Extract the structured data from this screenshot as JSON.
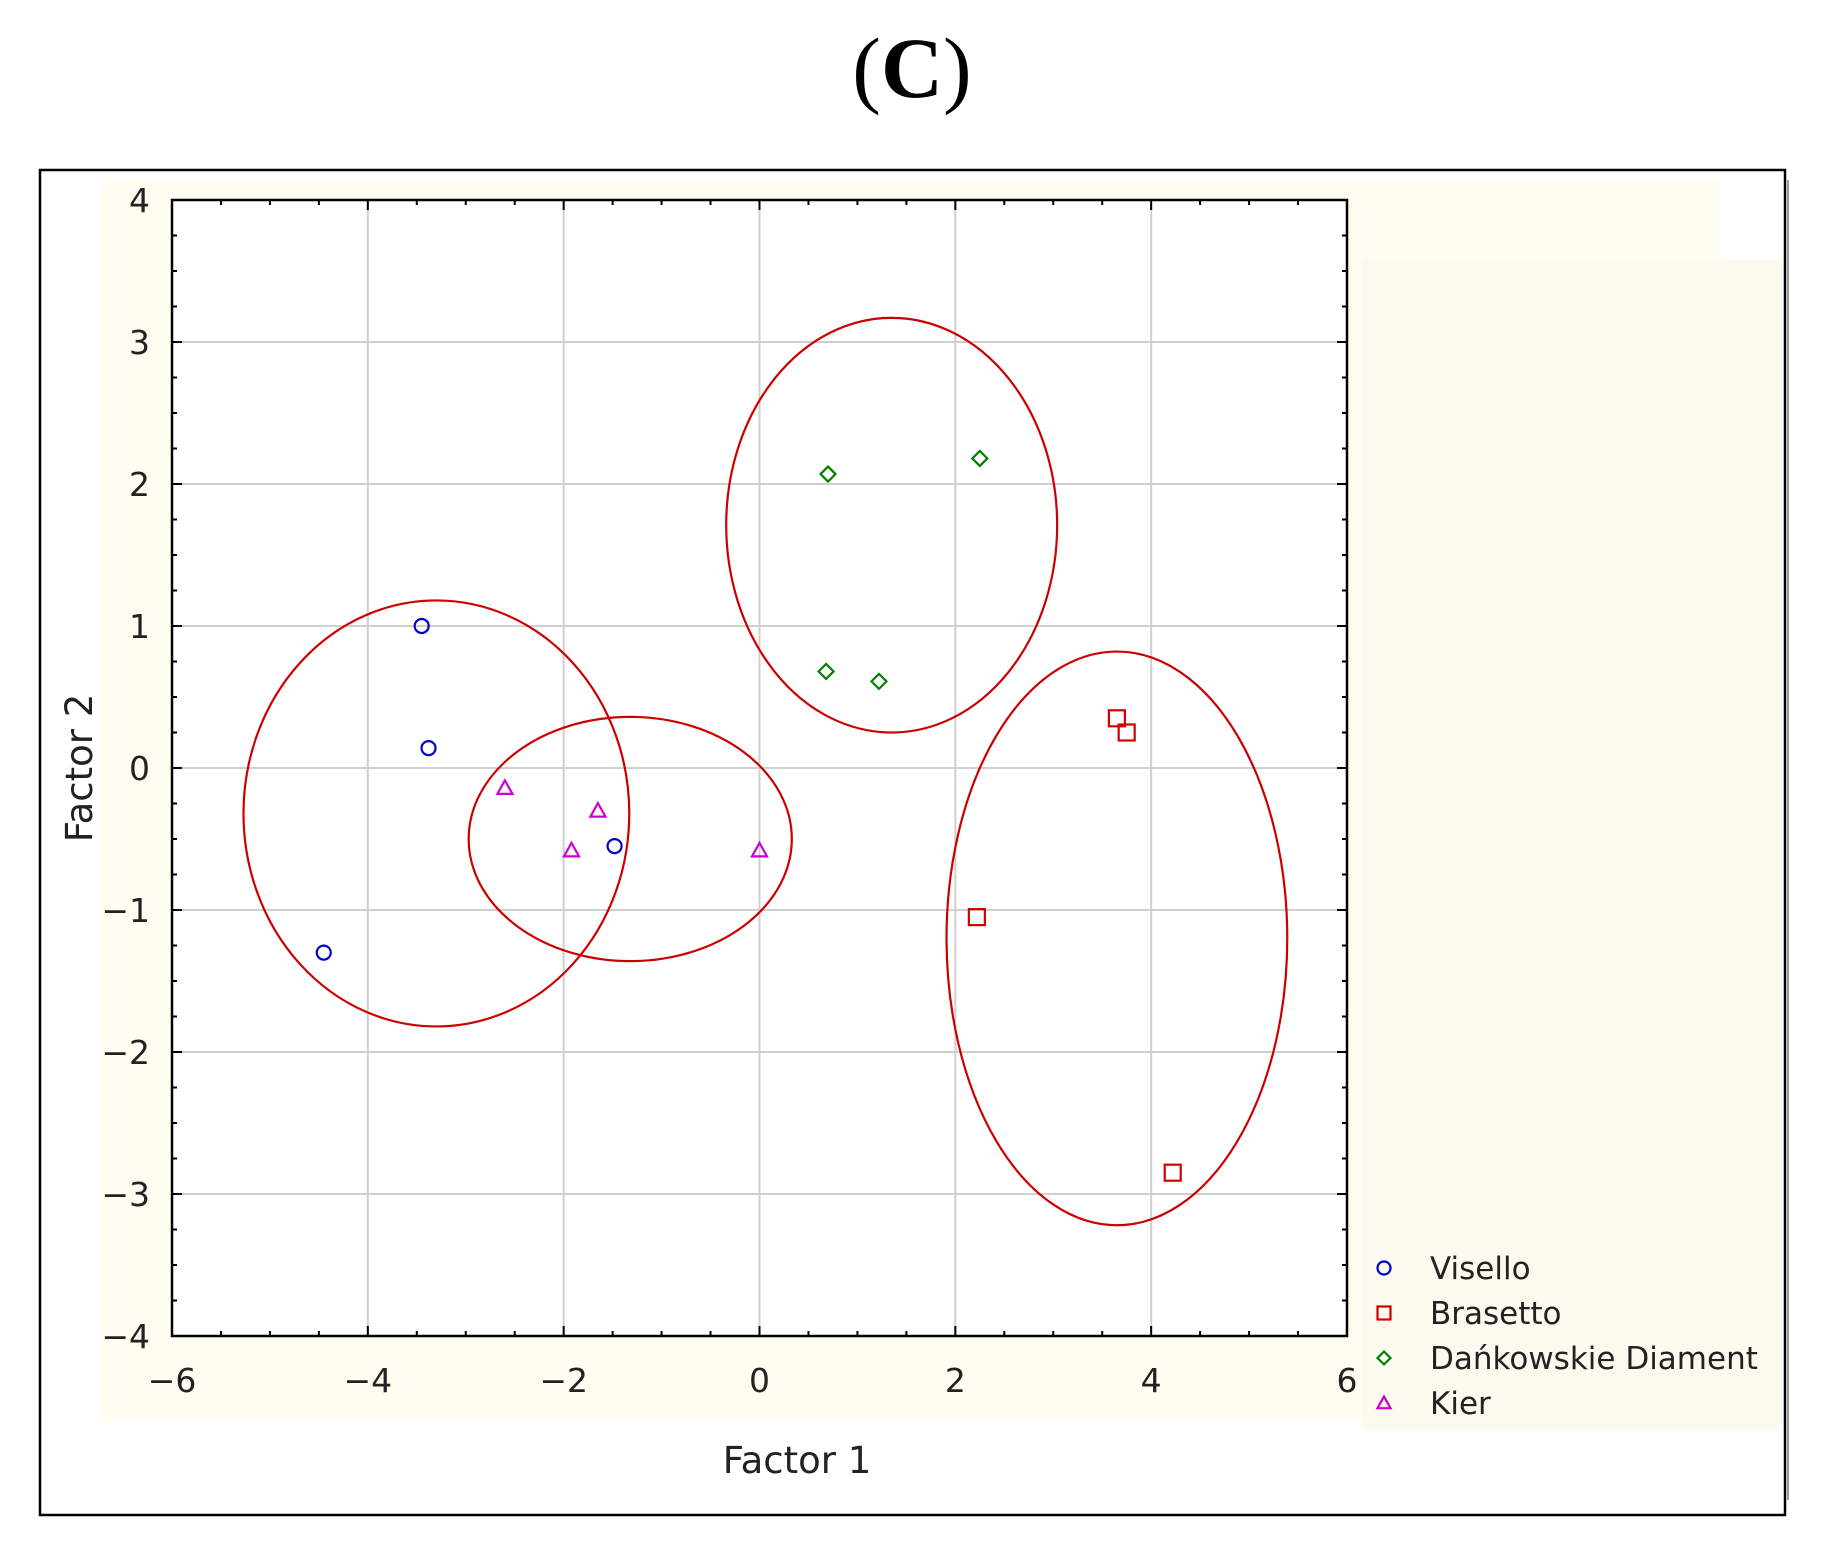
{
  "panel_label": "C",
  "chart_data": {
    "type": "scatter",
    "title": "",
    "xlabel": "Factor 1",
    "ylabel": "Factor 2",
    "xlim": [
      -6,
      6
    ],
    "ylim": [
      -4,
      4
    ],
    "xticks": [
      -6,
      -4,
      -2,
      0,
      2,
      4,
      6
    ],
    "yticks": [
      -4,
      -3,
      -2,
      -1,
      0,
      1,
      2,
      3,
      4
    ],
    "grid": true,
    "legend_position": "bottom-right",
    "series": [
      {
        "name": "Visello",
        "marker": "circle",
        "color": "#0000cc",
        "points": [
          [
            -3.45,
            1.0
          ],
          [
            -3.38,
            0.14
          ],
          [
            -1.48,
            -0.55
          ],
          [
            -4.45,
            -1.3
          ]
        ]
      },
      {
        "name": "Brasetto",
        "marker": "square",
        "color": "#d40000",
        "points": [
          [
            3.65,
            0.35
          ],
          [
            3.75,
            0.25
          ],
          [
            2.22,
            -1.05
          ],
          [
            4.22,
            -2.85
          ]
        ]
      },
      {
        "name": "Dańkowskie Diament",
        "marker": "diamond",
        "color": "#008000",
        "points": [
          [
            0.7,
            2.07
          ],
          [
            2.25,
            2.18
          ],
          [
            0.68,
            0.68
          ],
          [
            1.22,
            0.61
          ]
        ]
      },
      {
        "name": "Kier",
        "marker": "triangle",
        "color": "#cc00cc",
        "points": [
          [
            -2.6,
            -0.14
          ],
          [
            -1.65,
            -0.3
          ],
          [
            -1.92,
            -0.58
          ],
          [
            0.0,
            -0.58
          ]
        ]
      }
    ],
    "ellipses": [
      {
        "group": "Visello",
        "cx": -3.3,
        "cy": -0.32,
        "rx": 1.97,
        "ry": 1.5,
        "color": "#cc0000"
      },
      {
        "group": "Kier",
        "cx": -1.32,
        "cy": -0.5,
        "rx": 1.65,
        "ry": 0.86,
        "color": "#cc0000"
      },
      {
        "group": "Dańkowskie Diament",
        "cx": 1.35,
        "cy": 1.71,
        "rx": 1.69,
        "ry": 1.46,
        "color": "#cc0000"
      },
      {
        "group": "Brasetto",
        "cx": 3.65,
        "cy": -1.2,
        "rx": 1.74,
        "ry": 2.02,
        "color": "#cc0000"
      }
    ]
  }
}
